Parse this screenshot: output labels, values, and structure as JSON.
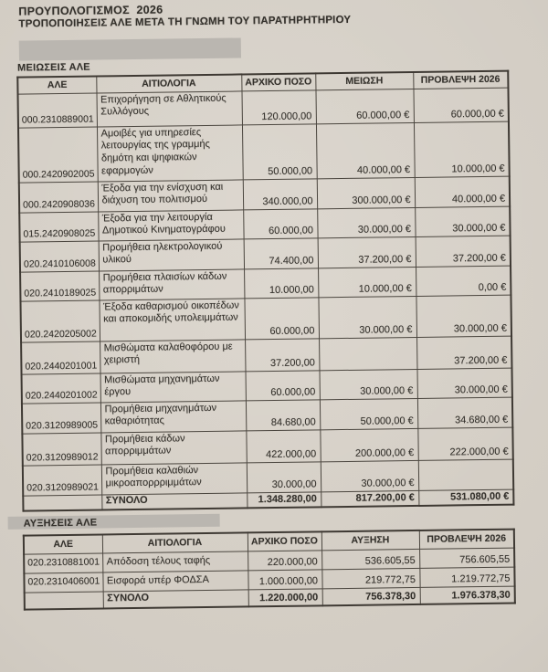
{
  "page": {
    "title": "ΠΡΟΥΠΟΛΟΓΙΣΜΟΣ  2026",
    "subtitle": "ΤΡΟΠΟΠΟΙΗΣΕΙΣ ΑΛΕ ΜΕΤΑ ΤΗ ΓΝΩΜΗ ΤΟΥ ΠΑΡΑΤΗΡΗΤΗΡΙΟΥ"
  },
  "colors": {
    "paper": "#d2ccc3",
    "ink": "#33302b",
    "table_border": "#4b463f",
    "redaction_gray": "#bab6b0"
  },
  "tables": [
    {
      "section_label": "ΜΕΙΩΣΕΙΣ ΑΛΕ",
      "headers": [
        "ΑΛΕ",
        "ΑΙΤΙΟΛΟΓΙΑ",
        "ΑΡΧΙΚΟ ΠΟΣΟ",
        "ΜΕΙΩΣΗ",
        "ΠΡΟΒΛΕΨΗ 2026"
      ],
      "rows": [
        {
          "ale": "000.2310889001",
          "reason": "Επιχορήγηση σε Αθλητικούς Συλλόγους",
          "initial": "120.000,00",
          "change": "60.000,00 €",
          "forecast": "60.000,00 €"
        },
        {
          "ale": "000.2420902005",
          "reason": "Αμοιβές για υπηρεσίες λειτουργίας της γραμμής δημότη και ψηφιακών εφαρμογών",
          "initial": "50.000,00",
          "change": "40.000,00 €",
          "forecast": "10.000,00 €"
        },
        {
          "ale": "000.2420908036",
          "reason": "Έξοδα για την ενίσχυση και διάχυση του πολιτισμού",
          "initial": "340.000,00",
          "change": "300.000,00 €",
          "forecast": "40.000,00 €"
        },
        {
          "ale": "015.2420908025",
          "reason": "Έξοδα για την λειτουργία Δημοτικού Κινηματογράφου",
          "initial": "60.000,00",
          "change": "30.000,00 €",
          "forecast": "30.000,00 €"
        },
        {
          "ale": "020.2410106008",
          "reason": "Προμήθεια ηλεκτρολογικού υλικού",
          "initial": "74.400,00",
          "change": "37.200,00 €",
          "forecast": "37.200,00 €"
        },
        {
          "ale": "020.2410189025",
          "reason": "Προμήθεια πλαισίων κάδων απορριμάτων",
          "initial": "10.000,00",
          "change": "10.000,00 €",
          "forecast": "0,00 €"
        },
        {
          "ale": "020.2420205002",
          "reason": "Έξοδα καθαρισμού οικοπέδων και αποκομιδής υπολειμμάτων",
          "initial": "60.000,00",
          "change": "30.000,00 €",
          "forecast": "30.000,00 €"
        },
        {
          "ale": "020.2440201001",
          "reason": "Μισθώματα καλαθοφόρου με χειριστή",
          "initial": "37.200,00",
          "change": "",
          "forecast": "37.200,00 €"
        },
        {
          "ale": "020.2440201002",
          "reason": "Μισθώματα μηχανημάτων έργου",
          "initial": "60.000,00",
          "change": "30.000,00 €",
          "forecast": "30.000,00 €"
        },
        {
          "ale": "020.3120989005",
          "reason": "Προμήθεια μηχανημάτων καθαριότητας",
          "initial": "84.680,00",
          "change": "50.000,00 €",
          "forecast": "34.680,00 €"
        },
        {
          "ale": "020.3120989012",
          "reason": "Προμήθεια κάδων απορριμμάτων",
          "initial": "422.000,00",
          "change": "200.000,00 €",
          "forecast": "222.000,00 €"
        },
        {
          "ale": "020.3120989021",
          "reason": "Προμήθεια καλαθιών μικροαπορρριμμάτων",
          "initial": "30.000,00",
          "change": "30.000,00 €",
          "forecast": ""
        }
      ],
      "total": {
        "label": "ΣΥΝΟΛΟ",
        "initial": "1.348.280,00",
        "change": "817.200,00 €",
        "forecast": "531.080,00 €"
      }
    },
    {
      "section_label": "ΑΥΞΗΣΕΙΣ ΑΛΕ",
      "headers": [
        "ΑΛΕ",
        "ΑΙΤΙΟΛΟΓΙΑ",
        "ΑΡΧΙΚΟ ΠΟΣΟ",
        "ΑΥΞΗΣΗ",
        "ΠΡΟΒΛΕΨΗ 2026"
      ],
      "rows": [
        {
          "ale": "020.2310881001",
          "reason": "Απόδοση τέλους ταφής",
          "initial": "220.000,00",
          "change": "536.605,55",
          "forecast": "756.605,55"
        },
        {
          "ale": "020.2310406001",
          "reason": "Εισφορά υπέρ ΦΟΔΣΑ",
          "initial": "1.000.000,00",
          "change": "219.772,75",
          "forecast": "1.219.772,75"
        }
      ],
      "total": {
        "label": "ΣΥΝΟΛΟ",
        "initial": "1.220.000,00",
        "change": "756.378,30",
        "forecast": "1.976.378,30"
      }
    }
  ]
}
